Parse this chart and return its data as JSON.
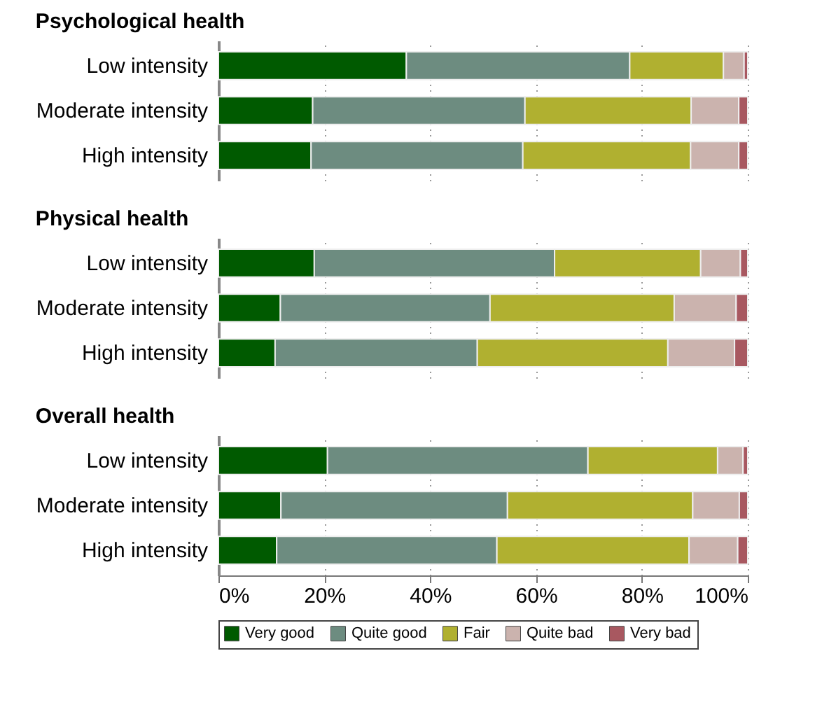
{
  "chart_data": [
    {
      "type": "bar",
      "orientation": "horizontal",
      "stacked": true,
      "title": "Psychological health",
      "categories": [
        "Low intensity",
        "Moderate intensity",
        "High intensity"
      ],
      "series": [
        {
          "color": "#005a00",
          "values": [
            35.5,
            17.8,
            17.5
          ]
        },
        {
          "color": "#6d8c80",
          "values": [
            42.2,
            40.1,
            40.0
          ]
        },
        {
          "color": "#b0b030",
          "values": [
            17.7,
            31.4,
            31.7
          ]
        },
        {
          "color": "#cbb3ae",
          "values": [
            3.9,
            9.0,
            9.1
          ]
        },
        {
          "color": "#a85860",
          "values": [
            0.7,
            1.7,
            1.7
          ]
        }
      ],
      "xlim": [
        0,
        100
      ],
      "xticks": [
        {
          "value": 0,
          "label": null
        },
        {
          "value": 20,
          "label": null
        },
        {
          "value": 40,
          "label": null
        },
        {
          "value": 60,
          "label": null
        },
        {
          "value": 80,
          "label": null
        },
        {
          "value": 100,
          "label": null
        }
      ],
      "grid": "x",
      "tick_labels": "y"
    },
    {
      "type": "bar",
      "orientation": "horizontal",
      "stacked": true,
      "title": "Physical health",
      "categories": [
        "Low intensity",
        "Moderate intensity",
        "High intensity"
      ],
      "series": [
        {
          "color": "#005a00",
          "values": [
            18.1,
            11.7,
            10.7
          ]
        },
        {
          "color": "#6d8c80",
          "values": [
            45.4,
            39.6,
            38.2
          ]
        },
        {
          "color": "#b0b030",
          "values": [
            27.6,
            34.8,
            36.0
          ]
        },
        {
          "color": "#cbb3ae",
          "values": [
            7.5,
            11.7,
            12.6
          ]
        },
        {
          "color": "#a85860",
          "values": [
            1.4,
            2.2,
            2.5
          ]
        }
      ],
      "xlim": [
        0,
        100
      ],
      "xticks": [
        {
          "value": 0,
          "label": null
        },
        {
          "value": 20,
          "label": null
        },
        {
          "value": 40,
          "label": null
        },
        {
          "value": 60,
          "label": null
        },
        {
          "value": 80,
          "label": null
        },
        {
          "value": 100,
          "label": null
        }
      ],
      "grid": "x",
      "tick_labels": "y"
    },
    {
      "type": "bar",
      "orientation": "horizontal",
      "stacked": true,
      "title": "Overall health",
      "categories": [
        "Low intensity",
        "Moderate intensity",
        "High intensity"
      ],
      "series": [
        {
          "name": "Very good",
          "color": "#005a00",
          "values": [
            20.6,
            11.8,
            11.0
          ]
        },
        {
          "name": "Quite good",
          "color": "#6d8c80",
          "values": [
            49.2,
            42.8,
            41.6
          ]
        },
        {
          "name": "Fair",
          "color": "#b0b030",
          "values": [
            24.5,
            35.0,
            36.3
          ]
        },
        {
          "name": "Quite bad",
          "color": "#cbb3ae",
          "values": [
            4.8,
            8.8,
            9.2
          ]
        },
        {
          "name": "Very bad",
          "color": "#a85860",
          "values": [
            0.9,
            1.6,
            1.9
          ]
        }
      ],
      "xlim": [
        0,
        100
      ],
      "xticks": [
        {
          "value": 0,
          "label": "0%"
        },
        {
          "value": 20,
          "label": "20%"
        },
        {
          "value": 40,
          "label": "40%"
        },
        {
          "value": 60,
          "label": "60%"
        },
        {
          "value": 80,
          "label": "80%"
        },
        {
          "value": 100,
          "label": "100%"
        }
      ],
      "grid": "x",
      "legend": "bottom"
    }
  ]
}
